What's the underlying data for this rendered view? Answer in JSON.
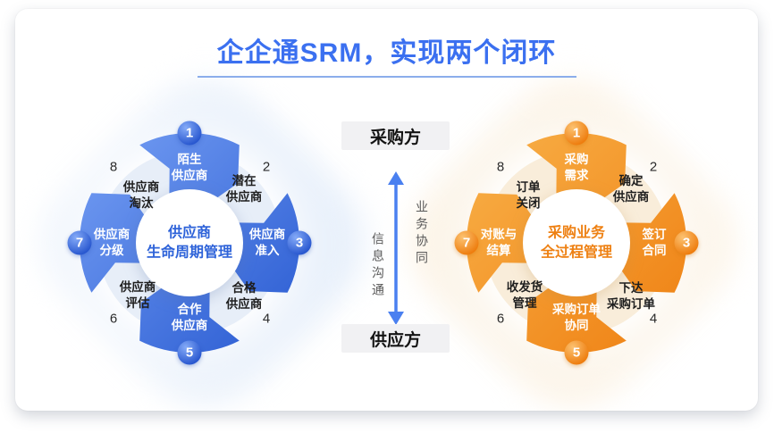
{
  "title": {
    "text": "企企通SRM，实现两个闭环"
  },
  "flow": {
    "top_party": "采购方",
    "bottom_party": "供应方",
    "right_channel": "业务协同",
    "left_channel": "信息沟通"
  },
  "left_wheel": {
    "center": {
      "line1": "供应商",
      "line2": "生命周期管理"
    },
    "segments": [
      {
        "num": "1",
        "label": "陌生\n供应商",
        "type": "colored",
        "position": "top"
      },
      {
        "num": "2",
        "label": "潜在\n供应商",
        "type": "light",
        "position": "top-right"
      },
      {
        "num": "3",
        "label": "供应商\n准入",
        "type": "colored",
        "position": "right"
      },
      {
        "num": "4",
        "label": "合格\n供应商",
        "type": "light",
        "position": "bottom-right"
      },
      {
        "num": "5",
        "label": "合作\n供应商",
        "type": "colored",
        "position": "bottom"
      },
      {
        "num": "6",
        "label": "供应商\n评估",
        "type": "light",
        "position": "bottom-left"
      },
      {
        "num": "7",
        "label": "供应商\n分级",
        "type": "colored",
        "position": "left"
      },
      {
        "num": "8",
        "label": "供应商\n淘汰",
        "type": "light",
        "position": "top-left"
      }
    ]
  },
  "right_wheel": {
    "center": {
      "line1": "采购业务",
      "line2": "全过程管理"
    },
    "segments": [
      {
        "num": "1",
        "label": "采购\n需求",
        "type": "colored",
        "position": "top"
      },
      {
        "num": "2",
        "label": "确定\n供应商",
        "type": "light",
        "position": "top-right"
      },
      {
        "num": "3",
        "label": "签订\n合同",
        "type": "colored",
        "position": "right"
      },
      {
        "num": "4",
        "label": "下达\n采购订单",
        "type": "light",
        "position": "bottom-right"
      },
      {
        "num": "5",
        "label": "采购订单\n协同",
        "type": "colored",
        "position": "bottom"
      },
      {
        "num": "6",
        "label": "收发货\n管理",
        "type": "light",
        "position": "bottom-left"
      },
      {
        "num": "7",
        "label": "对账与\n结算",
        "type": "colored",
        "position": "left"
      },
      {
        "num": "8",
        "label": "订单\n关闭",
        "type": "light",
        "position": "top-left"
      }
    ]
  },
  "colors": {
    "title_blue": "#3b70f0",
    "underline_blue": "#8badeb",
    "segment_blue_light": "#7aa3f6",
    "segment_blue_dark": "#2456cf",
    "ring_blue": "#e7eef8",
    "hub_text_blue": "#2e63d9",
    "segment_orange_light": "#f9b44c",
    "segment_orange_dark": "#ee7c0e",
    "ring_orange": "#f9edda",
    "hub_text_orange": "#ee8012",
    "arrow_blue": "#4a80f0",
    "blob_blue": "#dbe7f8",
    "blob_orange": "#f9ecd7",
    "party_box_bg": "#f1f1f3"
  }
}
